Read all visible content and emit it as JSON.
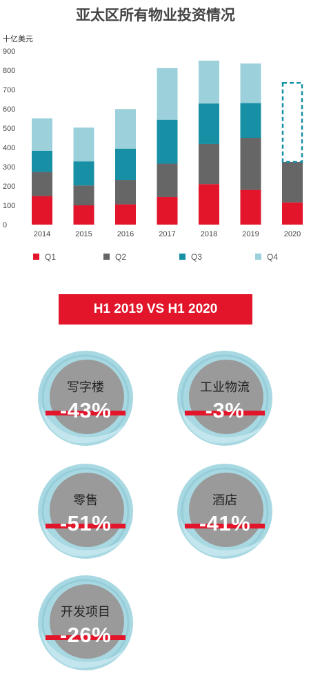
{
  "title": "亚太区所有物业投资情况",
  "colors": {
    "q1": "#e2152a",
    "q2": "#666666",
    "q3": "#1790a6",
    "q4": "#9cd1dc",
    "accent": "#e2152a"
  },
  "chart_data": {
    "type": "bar",
    "stacked": true,
    "ylabel": "十亿美元",
    "ylim": [
      0,
      900
    ],
    "yticks": [
      0,
      100,
      200,
      300,
      400,
      500,
      600,
      700,
      800,
      900
    ],
    "categories": [
      "2014",
      "2015",
      "2016",
      "2017",
      "2018",
      "2019",
      "2020"
    ],
    "series": [
      {
        "name": "Q1",
        "values": [
          148,
          100,
          105,
          143,
          210,
          180,
          115
        ]
      },
      {
        "name": "Q2",
        "values": [
          125,
          103,
          127,
          173,
          208,
          270,
          210
        ]
      },
      {
        "name": "Q3",
        "values": [
          110,
          125,
          162,
          228,
          210,
          180,
          null
        ]
      },
      {
        "name": "Q4",
        "values": [
          168,
          175,
          205,
          267,
          222,
          205,
          null
        ]
      }
    ],
    "annotation": {
      "category": "2020",
      "projected_range": [
        325,
        735
      ],
      "style": "dashed-outline"
    },
    "legend_position": "bottom",
    "grid": false
  },
  "comparison": {
    "title": "H1 2019 VS H1 2020",
    "items": [
      {
        "label": "写字楼",
        "value": "-43%"
      },
      {
        "label": "工业物流",
        "value": "-3%"
      },
      {
        "label": "零售",
        "value": "-51%"
      },
      {
        "label": "酒店",
        "value": "-41%"
      },
      {
        "label": "开发项目",
        "value": "-26%"
      }
    ]
  }
}
